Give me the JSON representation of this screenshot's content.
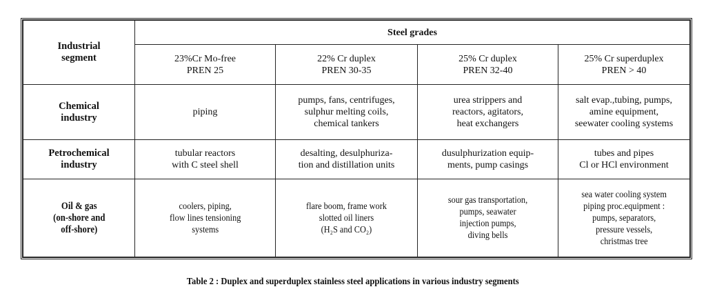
{
  "table": {
    "corner_header": [
      "Industrial",
      "segment"
    ],
    "group_header": "Steel grades",
    "grades": [
      [
        "23%Cr Mo-free",
        "PREN 25"
      ],
      [
        "22% Cr duplex",
        "PREN 30-35"
      ],
      [
        "25% Cr duplex",
        "PREN 32-40"
      ],
      [
        "25% Cr superduplex",
        "PREN > 40"
      ]
    ],
    "rows": [
      {
        "segment": [
          "Chemical",
          "industry"
        ],
        "cells": [
          [
            "piping"
          ],
          [
            "pumps, fans, centrifuges,",
            "sulphur melting coils,",
            "chemical tankers"
          ],
          [
            "urea strippers and",
            "reactors, agitators,",
            "heat exchangers"
          ],
          [
            "salt evap.,tubing, pumps,",
            "amine equipment,",
            "seewater cooling systems"
          ]
        ]
      },
      {
        "segment": [
          "Petrochemical",
          "industry"
        ],
        "cells": [
          [
            "tubular reactors",
            "with C steel shell"
          ],
          [
            "desalting, desulphuriza-",
            "tion and distillation units"
          ],
          [
            "dusulphurization equip-",
            "ments, pump casings"
          ],
          [
            "tubes and pipes",
            "Cl or HCl environment"
          ]
        ]
      },
      {
        "segment": [
          "Oil & gas",
          "(on-shore and",
          "off-shore)"
        ],
        "cells": [
          [
            "coolers, piping,",
            "flow lines tensioning",
            "systems"
          ],
          [
            "flare boom, frame work",
            "slotted oil liners",
            "(H₂S and CO₂)"
          ],
          [
            "sour gas transportation,",
            "pumps, seawater",
            "injection pumps,",
            "diving bells"
          ],
          [
            "sea water cooling system",
            "piping proc.equipment :",
            "pumps, separators,",
            "pressure vessels,",
            "christmas tree"
          ]
        ]
      }
    ]
  },
  "caption": "Table 2 : Duplex and superduplex stainless steel applications in various industry segments"
}
